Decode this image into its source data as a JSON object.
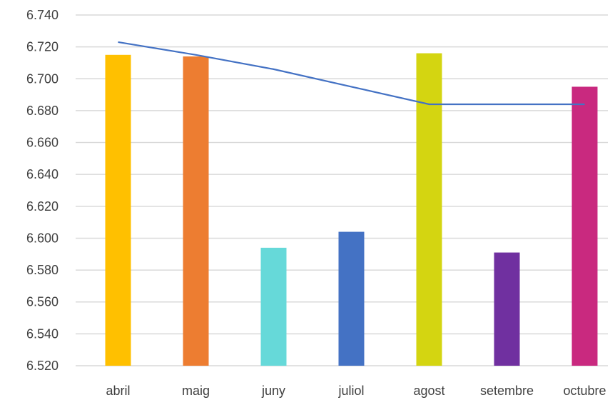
{
  "chart_data": {
    "type": "bar",
    "categories": [
      "abril",
      "maig",
      "juny",
      "juliol",
      "agost",
      "setembre",
      "octubre"
    ],
    "series": [
      {
        "type": "bar",
        "values": [
          6.715,
          6.714,
          6.594,
          6.604,
          6.716,
          6.591,
          6.695
        ],
        "colors": [
          "#ffc000",
          "#ed7d31",
          "#66d9d9",
          "#4472c4",
          "#d4d511",
          "#7030a0",
          "#c9297f"
        ]
      },
      {
        "type": "line",
        "values": [
          6.723,
          6.715,
          6.706,
          6.695,
          6.684,
          6.684,
          6.684
        ],
        "color": "#4472c4"
      }
    ],
    "ylim": [
      6.52,
      6.74
    ],
    "yticks": [
      "6.740",
      "6.720",
      "6.700",
      "6.680",
      "6.660",
      "6.640",
      "6.620",
      "6.600",
      "6.580",
      "6.560",
      "6.540",
      "6.520"
    ],
    "grid": true,
    "title": "",
    "xlabel": "",
    "ylabel": ""
  }
}
